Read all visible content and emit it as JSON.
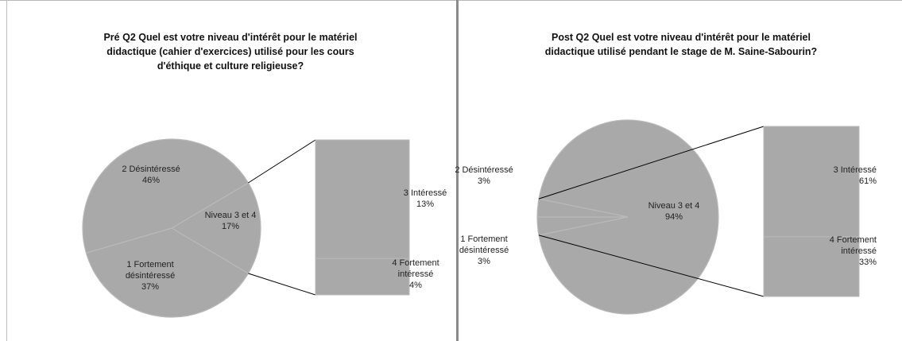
{
  "colors": {
    "pie": "#a9a9a9",
    "pie_edge": "#b9b9b9",
    "stroke": "#000000",
    "divider": "#8a8a8a"
  },
  "chart_data": [
    {
      "type": "pie",
      "variant": "bar-of-pie",
      "title_lines": [
        "Pré Q2   Quel est votre niveau d'intérêt pour le matériel",
        "didactique (cahier d'exercices) utilisé pour les cours",
        "d'éthique et culture religieuse?"
      ],
      "slices": [
        {
          "label_lines": [
            "2  Désintéressé",
            "46%"
          ],
          "value": 46
        },
        {
          "label_lines": [
            "1  Fortement",
            "désintéressé",
            "37%"
          ],
          "value": 37
        },
        {
          "label_lines": [
            "Niveau 3 et 4",
            "17%"
          ],
          "value": 17
        }
      ],
      "secondary": [
        {
          "label_lines": [
            "3  Intéressé",
            "13%"
          ],
          "value": 13
        },
        {
          "label_lines": [
            "4  Fortement",
            "intéressé",
            "4%"
          ],
          "value": 4
        }
      ]
    },
    {
      "type": "pie",
      "variant": "bar-of-pie",
      "title_lines": [
        "Post Q2   Quel est votre niveau d'intérêt pour le matériel",
        "didactique utilisé pendant le stage de M. Saine-Sabourin?"
      ],
      "slices": [
        {
          "label_lines": [
            "2  Désintéressé",
            "3%"
          ],
          "value": 3
        },
        {
          "label_lines": [
            "1  Fortement",
            "désintéressé",
            "3%"
          ],
          "value": 3
        },
        {
          "label_lines": [
            "Niveau 3 et 4",
            "94%"
          ],
          "value": 94
        }
      ],
      "secondary": [
        {
          "label_lines": [
            "3  Intéressé",
            "61%"
          ],
          "value": 61
        },
        {
          "label_lines": [
            "4  Fortement",
            "intéressé",
            "33%"
          ],
          "value": 33
        }
      ]
    }
  ]
}
